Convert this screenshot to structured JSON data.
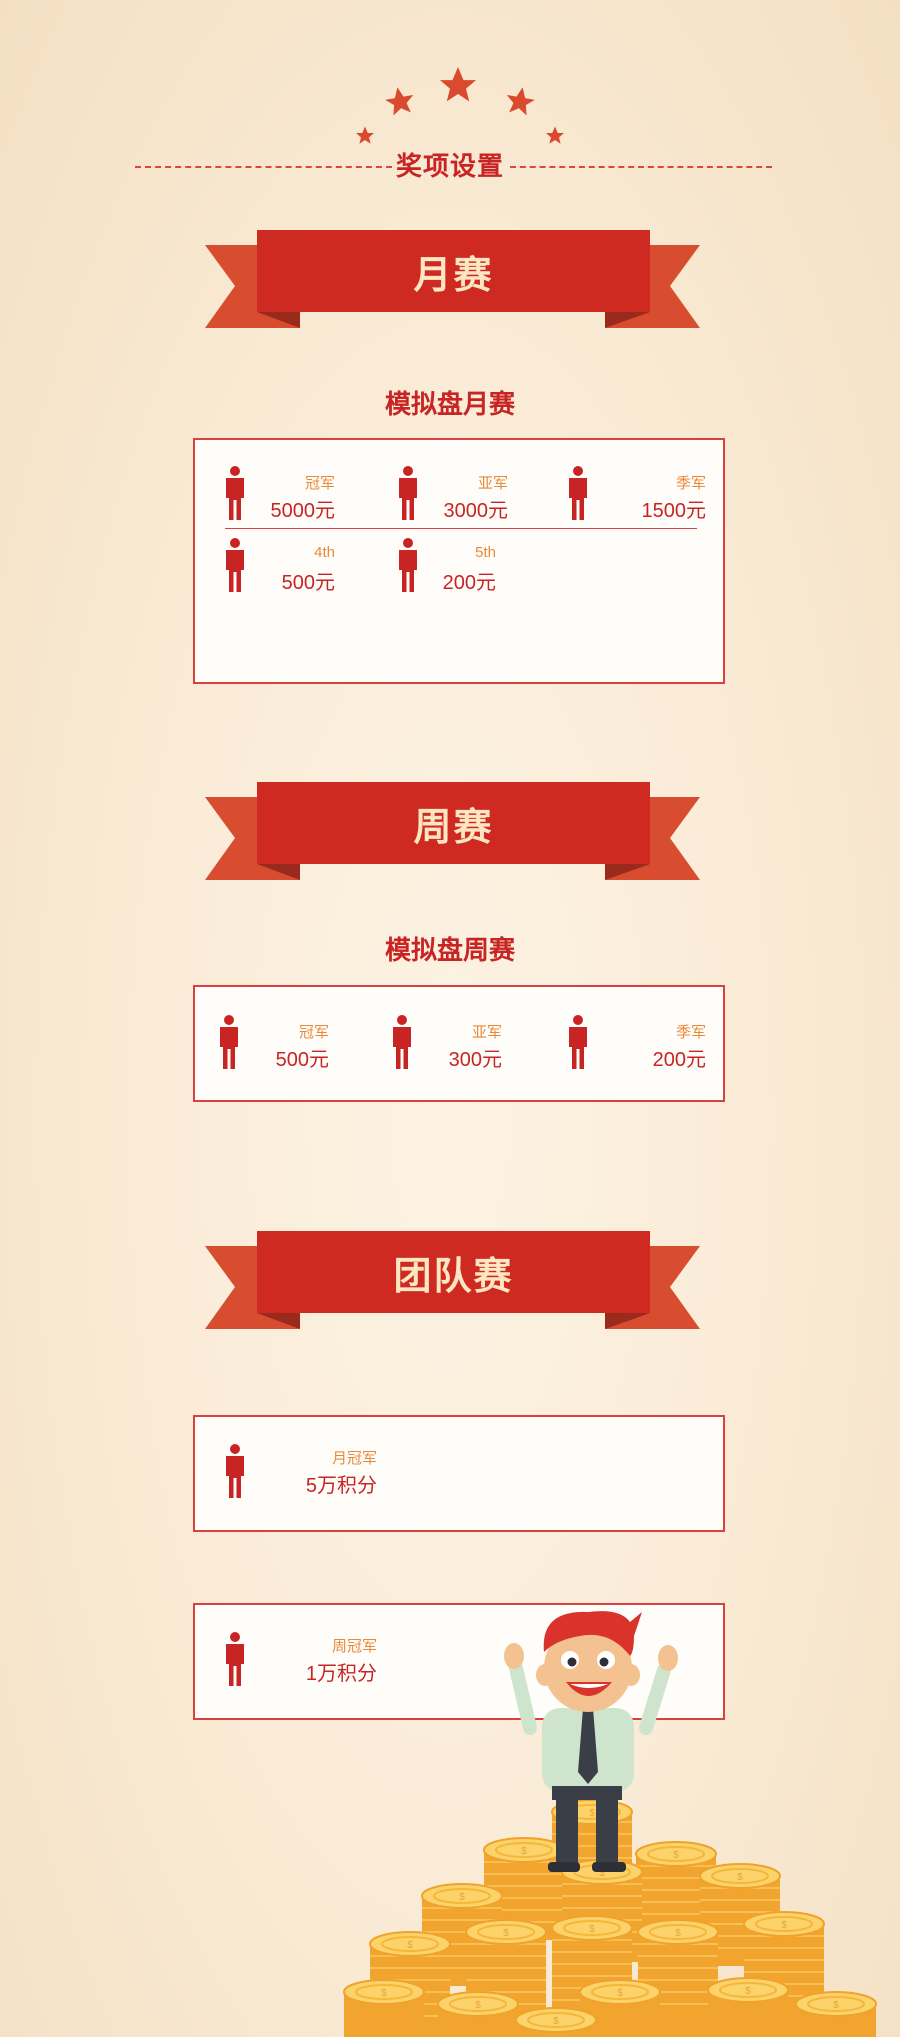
{
  "header": {
    "title": "奖项设置"
  },
  "sections": {
    "monthly": {
      "ribbon": "月赛",
      "title": "模拟盘月赛",
      "prizes": [
        {
          "rank": "冠军",
          "amount": "5000元"
        },
        {
          "rank": "亚军",
          "amount": "3000元"
        },
        {
          "rank": "季军",
          "amount": "1500元"
        },
        {
          "rank": "4th",
          "amount": "500元"
        },
        {
          "rank": "5th",
          "amount": "200元"
        }
      ]
    },
    "weekly": {
      "ribbon": "周赛",
      "title": "模拟盘周赛",
      "prizes": [
        {
          "rank": "冠军",
          "amount": "500元"
        },
        {
          "rank": "亚军",
          "amount": "300元"
        },
        {
          "rank": "季军",
          "amount": "200元"
        }
      ]
    },
    "team": {
      "ribbon": "团队赛",
      "items": [
        {
          "rank": "月冠军",
          "amount": "5万积分"
        },
        {
          "rank": "周冠军",
          "amount": "1万积分"
        }
      ]
    }
  },
  "colors": {
    "accent": "#cf2a22",
    "ribbon_tail": "#d84c2f",
    "ribbon_text": "#fde6c2",
    "rank_text": "#e88a3a",
    "coin": "#f5b63a"
  },
  "icons": [
    "star-icon",
    "person-icon",
    "ribbon-banner",
    "businessman-illustration",
    "coin-stack"
  ]
}
